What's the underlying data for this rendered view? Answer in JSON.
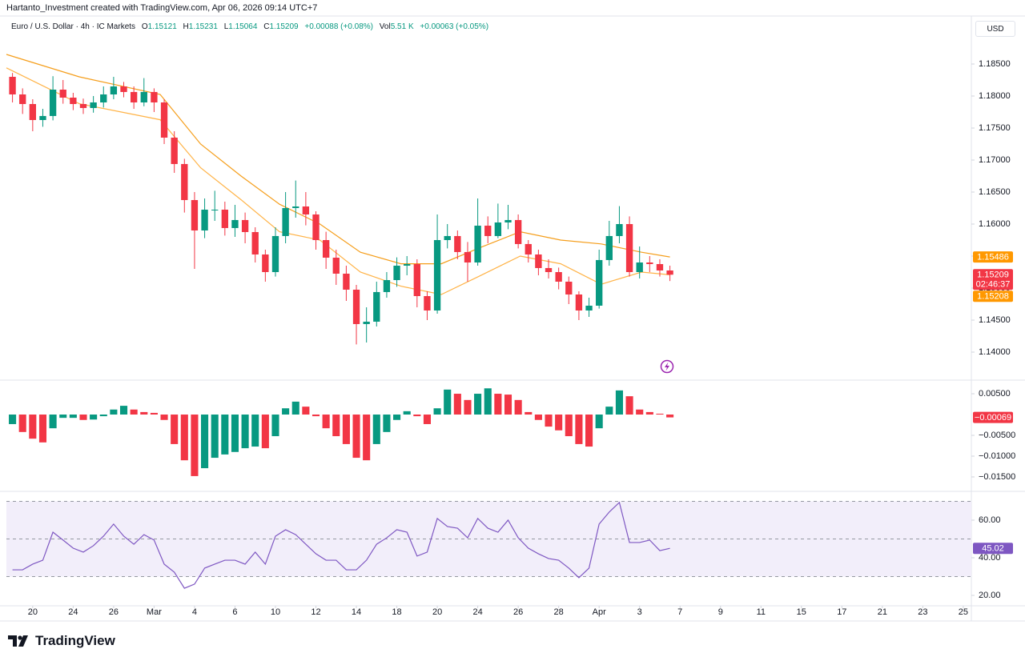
{
  "header": {
    "attribution": "Hartanto_Investment created with TradingView.com, Apr 06, 2026 09:14 UTC+7",
    "symbol": "Euro / U.S. Dollar · 4h · IC Markets",
    "ohlc": [
      {
        "key": "O",
        "value": "1.15121"
      },
      {
        "key": "H",
        "value": "1.15231"
      },
      {
        "key": "L",
        "value": "1.15064"
      },
      {
        "key": "C",
        "value": "1.15209"
      }
    ],
    "change": "+0.00088 (+0.08%)",
    "vol_key": "Vol",
    "vol": "5.51 K",
    "vol_change": "+0.00063 (+0.05%)",
    "currency": "USD"
  },
  "footer": {
    "brand": "TradingView"
  },
  "chart_data": [
    {
      "type": "candlestick",
      "up_color": "#089981",
      "down_color": "#f23645",
      "x": [
        1,
        1.5,
        2,
        2.5,
        3,
        3.5,
        4,
        4.5,
        5,
        5.5,
        6,
        6.5,
        7,
        7.5,
        8,
        8.5,
        9,
        9.5,
        10,
        10.5,
        11,
        11.5,
        12,
        12.5,
        13,
        13.5,
        14,
        14.5,
        15,
        15.5,
        16,
        16.5,
        17,
        17.5,
        18,
        18.5,
        19,
        19.5,
        20,
        20.5,
        21,
        21.5,
        22,
        22.5,
        23,
        23.5,
        24,
        24.5,
        25,
        25.5,
        26,
        26.5,
        27,
        27.5,
        28,
        28.5,
        29,
        29.5,
        30,
        30.5,
        31,
        31.5,
        32,
        32.5,
        33,
        33.5
      ],
      "ohlc": [
        [
          1.183,
          1.1836,
          1.179,
          1.18025
        ],
        [
          1.18025,
          1.1812,
          1.1772,
          1.17875
        ],
        [
          1.17875,
          1.1795,
          1.1745,
          1.17625
        ],
        [
          1.17625,
          1.178,
          1.1752,
          1.17688
        ],
        [
          1.17688,
          1.1831,
          1.1762,
          1.181
        ],
        [
          1.181,
          1.1825,
          1.1788,
          1.17975
        ],
        [
          1.17975,
          1.1805,
          1.1778,
          1.17875
        ],
        [
          1.17875,
          1.1796,
          1.1772,
          1.17813
        ],
        [
          1.17813,
          1.18,
          1.1774,
          1.179
        ],
        [
          1.179,
          1.1815,
          1.1782,
          1.18025
        ],
        [
          1.18025,
          1.183,
          1.1795,
          1.1815
        ],
        [
          1.1815,
          1.1822,
          1.1798,
          1.18063
        ],
        [
          1.18063,
          1.1815,
          1.178,
          1.179
        ],
        [
          1.179,
          1.1828,
          1.1784,
          1.18063
        ],
        [
          1.18063,
          1.1812,
          1.1775,
          1.179
        ],
        [
          1.179,
          1.1795,
          1.1725,
          1.1735
        ],
        [
          1.1735,
          1.1745,
          1.168,
          1.16938
        ],
        [
          1.16938,
          1.1702,
          1.1618,
          1.16375
        ],
        [
          1.16375,
          1.165,
          1.153,
          1.159
        ],
        [
          1.159,
          1.164,
          1.1578,
          1.16225
        ],
        [
          1.16225,
          1.1652,
          1.1605,
          1.16225
        ],
        [
          1.16225,
          1.1635,
          1.1582,
          1.15938
        ],
        [
          1.15938,
          1.163,
          1.158,
          1.16063
        ],
        [
          1.16063,
          1.1618,
          1.157,
          1.15875
        ],
        [
          1.15875,
          1.1595,
          1.154,
          1.15525
        ],
        [
          1.15525,
          1.156,
          1.151,
          1.1525
        ],
        [
          1.1525,
          1.1595,
          1.1518,
          1.15813
        ],
        [
          1.15813,
          1.165,
          1.157,
          1.1625
        ],
        [
          1.1625,
          1.1668,
          1.161,
          1.16275
        ],
        [
          1.16275,
          1.165,
          1.1598,
          1.1615
        ],
        [
          1.1615,
          1.162,
          1.156,
          1.1575
        ],
        [
          1.1575,
          1.1588,
          1.153,
          1.15475
        ],
        [
          1.15475,
          1.156,
          1.1505,
          1.15225
        ],
        [
          1.15225,
          1.1535,
          1.148,
          1.14975
        ],
        [
          1.14975,
          1.1505,
          1.1412,
          1.14438
        ],
        [
          1.14438,
          1.147,
          1.1415,
          1.14475
        ],
        [
          1.14475,
          1.151,
          1.144,
          1.14938
        ],
        [
          1.14938,
          1.1525,
          1.1485,
          1.15125
        ],
        [
          1.15125,
          1.1548,
          1.1502,
          1.1535
        ],
        [
          1.1535,
          1.155,
          1.152,
          1.15375
        ],
        [
          1.15375,
          1.1545,
          1.147,
          1.14875
        ],
        [
          1.14875,
          1.1495,
          1.145,
          1.1465
        ],
        [
          1.1465,
          1.1615,
          1.146,
          1.1575
        ],
        [
          1.1575,
          1.16,
          1.1562,
          1.15813
        ],
        [
          1.15813,
          1.159,
          1.1545,
          1.15563
        ],
        [
          1.15563,
          1.1572,
          1.151,
          1.154
        ],
        [
          1.154,
          1.164,
          1.1535,
          1.15975
        ],
        [
          1.15975,
          1.1612,
          1.157,
          1.15813
        ],
        [
          1.15813,
          1.1632,
          1.1578,
          1.16025
        ],
        [
          1.16025,
          1.163,
          1.1592,
          1.16063
        ],
        [
          1.16063,
          1.1615,
          1.1562,
          1.15688
        ],
        [
          1.15688,
          1.1575,
          1.154,
          1.15525
        ],
        [
          1.15525,
          1.156,
          1.152,
          1.15313
        ],
        [
          1.15313,
          1.1545,
          1.1515,
          1.1525
        ],
        [
          1.1525,
          1.1532,
          1.1498,
          1.151
        ],
        [
          1.151,
          1.1518,
          1.1475,
          1.149
        ],
        [
          1.149,
          1.1495,
          1.145,
          1.1465
        ],
        [
          1.1465,
          1.1485,
          1.1455,
          1.14725
        ],
        [
          1.14725,
          1.156,
          1.1468,
          1.15438
        ],
        [
          1.15438,
          1.1605,
          1.1535,
          1.15813
        ],
        [
          1.15813,
          1.1628,
          1.157,
          1.16
        ],
        [
          1.16,
          1.1612,
          1.1518,
          1.1525
        ],
        [
          1.1525,
          1.1565,
          1.1515,
          1.154
        ],
        [
          1.154,
          1.155,
          1.1525,
          1.15375
        ],
        [
          1.15375,
          1.1545,
          1.1518,
          1.15275
        ],
        [
          1.15275,
          1.1535,
          1.1511,
          1.15209
        ]
      ],
      "lines": [
        {
          "color": "#f59e1b",
          "x": [
            0.7,
            4.3,
            8.3,
            10.3,
            12.3,
            14.2,
            16.2,
            18.2,
            20.2,
            22.2,
            24.1,
            26.1,
            28.1,
            30.1,
            32.1,
            33.5
          ],
          "values": [
            1.1865,
            1.183,
            1.18025,
            1.1725,
            1.1675,
            1.1631,
            1.16,
            1.1556,
            1.1538,
            1.1538,
            1.1563,
            1.1588,
            1.1575,
            1.1569,
            1.1556,
            1.15486
          ]
        },
        {
          "color": "#ffb347",
          "x": [
            0.7,
            4.3,
            8.3,
            10.3,
            12.3,
            14.2,
            16.2,
            18.2,
            20.2,
            22.2,
            24.1,
            26.1,
            28.1,
            30.1,
            32.1,
            33.5
          ],
          "values": [
            1.1844,
            1.1788,
            1.1763,
            1.1688,
            1.1638,
            1.1588,
            1.1575,
            1.1525,
            1.1503,
            1.149,
            1.1519,
            1.155,
            1.1538,
            1.1506,
            1.1525,
            1.15208
          ]
        }
      ],
      "xlim": [
        0.7,
        48.4
      ],
      "xticks": [
        {
          "value": 2,
          "label": "20"
        },
        {
          "value": 4,
          "label": "24"
        },
        {
          "value": 6,
          "label": "26"
        },
        {
          "value": 8,
          "label": "Mar"
        },
        {
          "value": 10,
          "label": "4"
        },
        {
          "value": 12,
          "label": "6"
        },
        {
          "value": 14,
          "label": "10"
        },
        {
          "value": 16,
          "label": "12"
        },
        {
          "value": 18,
          "label": "14"
        },
        {
          "value": 20,
          "label": "18"
        },
        {
          "value": 22,
          "label": "20"
        },
        {
          "value": 24,
          "label": "24"
        },
        {
          "value": 26,
          "label": "26"
        },
        {
          "value": 28,
          "label": "28"
        },
        {
          "value": 30,
          "label": "Apr"
        },
        {
          "value": 32,
          "label": "3"
        },
        {
          "value": 34,
          "label": "7"
        },
        {
          "value": 36,
          "label": "9"
        },
        {
          "value": 38,
          "label": "11"
        },
        {
          "value": 40,
          "label": "15"
        },
        {
          "value": 42,
          "label": "17"
        },
        {
          "value": 44,
          "label": "21"
        },
        {
          "value": 46,
          "label": "23"
        },
        {
          "value": 48,
          "label": "25"
        }
      ],
      "ylim": [
        1.136,
        1.1925
      ],
      "yticks": [
        {
          "value": 1.14,
          "label": "1.14000"
        },
        {
          "value": 1.145,
          "label": "1.14500"
        },
        {
          "value": 1.15,
          "label": "1.15000"
        },
        {
          "value": 1.155,
          "label": "1.15500"
        },
        {
          "value": 1.16,
          "label": "1.16000"
        },
        {
          "value": 1.165,
          "label": "1.16500"
        },
        {
          "value": 1.17,
          "label": "1.17000"
        },
        {
          "value": 1.175,
          "label": "1.17500"
        },
        {
          "value": 1.18,
          "label": "1.18000"
        },
        {
          "value": 1.185,
          "label": "1.18500"
        }
      ],
      "grid": false,
      "tags": [
        {
          "value": 1.15486,
          "label": "1.15486",
          "color": "#ff9800"
        },
        {
          "value": 1.15209,
          "label": "1.15209",
          "color": "#f23645",
          "countdown": "02:46:37"
        },
        {
          "value": 1.15208,
          "label": "1.15208",
          "color": "#ff9800"
        }
      ]
    },
    {
      "type": "bar",
      "up_color": "#089981",
      "down_color": "#f23645",
      "values": [
        -0.0023,
        -0.0042,
        -0.0058,
        -0.0067,
        -0.0033,
        -0.0008,
        -0.0008,
        -0.0013,
        -0.0012,
        -0.0004,
        0.0012,
        0.0021,
        0.0012,
        0.0006,
        0.0004,
        -0.0013,
        -0.0071,
        -0.011,
        -0.0148,
        -0.0129,
        -0.0104,
        -0.0096,
        -0.009,
        -0.0081,
        -0.0077,
        -0.0081,
        -0.0052,
        0.0015,
        0.0031,
        0.0019,
        -0.0004,
        -0.0033,
        -0.0052,
        -0.0071,
        -0.0104,
        -0.011,
        -0.0071,
        -0.0042,
        -0.0013,
        0.0008,
        -0.0004,
        -0.0023,
        0.0015,
        0.006,
        0.005,
        0.0035,
        0.005,
        0.0063,
        0.005,
        0.0048,
        0.0035,
        0.0006,
        -0.0013,
        -0.0029,
        -0.0038,
        -0.0052,
        -0.0071,
        -0.0077,
        -0.0033,
        0.0019,
        0.0058,
        0.0044,
        0.0012,
        0.0006,
        0.0002,
        -0.00069
      ],
      "ylim": [
        -0.0177,
        0.0077
      ],
      "yticks": [
        {
          "value": 0.005,
          "label": "0.00500"
        },
        {
          "value": -0.005,
          "label": "−0.00500"
        },
        {
          "value": -0.01,
          "label": "−0.01000"
        },
        {
          "value": -0.015,
          "label": "−0.01500"
        }
      ],
      "grid": false,
      "tags": [
        {
          "value": -0.00069,
          "label": "−0.00069",
          "color": "#f23645"
        }
      ]
    },
    {
      "type": "line",
      "color": "#7e57c2",
      "band_color": "#f2eefa",
      "values": [
        33.6,
        33.6,
        36.6,
        38.7,
        53.6,
        49.4,
        45.1,
        43,
        46.4,
        51.5,
        57.9,
        51.5,
        47.2,
        52.3,
        49.4,
        36.6,
        32.3,
        23.8,
        26,
        34.5,
        36.6,
        38.7,
        38.7,
        36.6,
        43,
        36.6,
        51.5,
        54.9,
        52.3,
        47.2,
        42.1,
        38.7,
        38.7,
        33.6,
        33.6,
        38.7,
        47.2,
        50.6,
        54.9,
        53.6,
        40.9,
        43,
        60.9,
        56.6,
        55.7,
        50.6,
        60.9,
        55.7,
        53.6,
        60,
        50.6,
        45.1,
        42.1,
        39.6,
        38.7,
        34.5,
        29.4,
        34.5,
        57.9,
        64.3,
        69.4,
        48.1,
        48.1,
        49.4,
        43.8,
        45.02
      ],
      "levels": [
        70,
        50,
        30
      ],
      "ylim": [
        14.9,
        73.6
      ],
      "yticks": [
        {
          "value": 60,
          "label": "60.00"
        },
        {
          "value": 40,
          "label": "40.00"
        },
        {
          "value": 20,
          "label": "20.00"
        }
      ],
      "grid": false,
      "tags": [
        {
          "value": 45.02,
          "label": "45.02",
          "color": "#7e57c2"
        }
      ]
    }
  ]
}
